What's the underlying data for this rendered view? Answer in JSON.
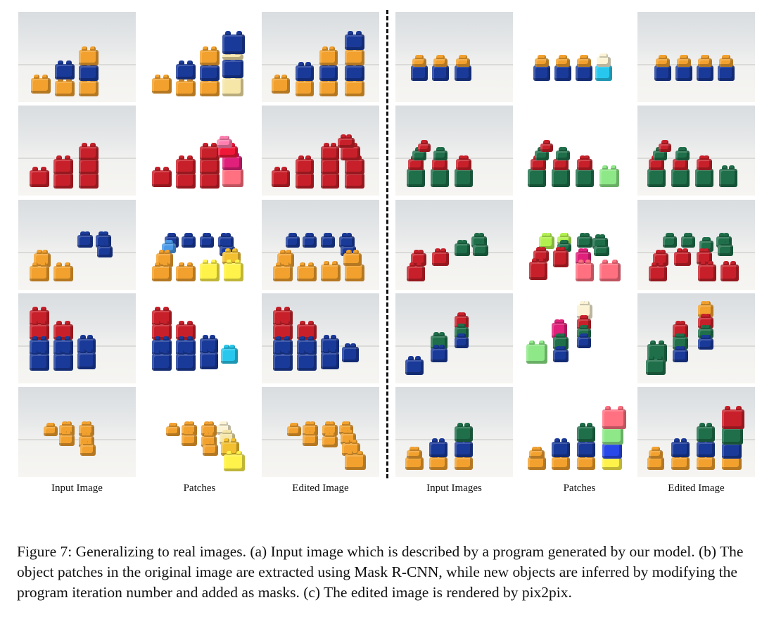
{
  "column_labels": {
    "left_input": "Input Image",
    "left_patches": "Patches",
    "left_edited": "Edited Image",
    "right_input": "Input Images",
    "right_patches": "Patches",
    "right_edited": "Edited Image"
  },
  "caption": "Figure 7: Generalizing to real images. (a) Input image which is described by a program generated by our model. (b) The object patches in the original image are extracted using Mask R-CNN, while new objects are inferred by modifying the program iteration number and added as masks. (c) The edited image is rendered by pix2pix.",
  "colors": {
    "orange": "#f2a12e",
    "blue": "#1a3a9a",
    "red": "#c8202a",
    "green": "#1f6f4a",
    "pale_yellow": "#f6e6a8",
    "yellow": "#fff24a",
    "cyan": "#28c8ee",
    "pink": "#ff7080",
    "magenta": "#e0207a",
    "light_green": "#8ee888",
    "lime": "#b2f050",
    "light_blue": "#4a9ae8",
    "cream": "#fbf3d4"
  }
}
